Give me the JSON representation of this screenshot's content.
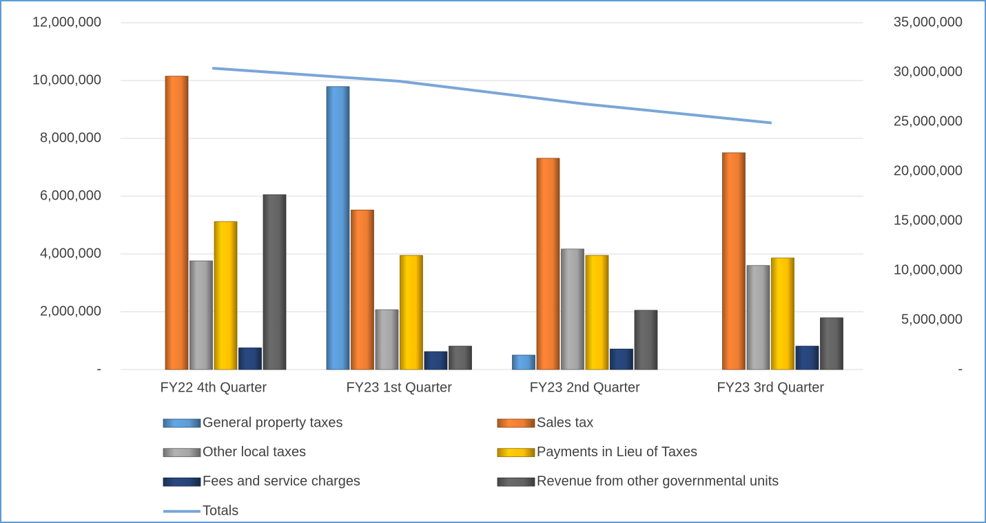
{
  "chart_data": {
    "type": "bar",
    "categories": [
      "FY22 4th Quarter",
      "FY23 1st Quarter",
      "FY23 2nd Quarter",
      "FY23 3rd Quarter"
    ],
    "series": [
      {
        "name": "General property taxes",
        "color": "#5b9bd5",
        "values": [
          0,
          9790000,
          500000,
          0
        ]
      },
      {
        "name": "Sales tax",
        "color": "#ed7d31",
        "values": [
          10150000,
          5520000,
          7310000,
          7500000
        ]
      },
      {
        "name": "Other local taxes",
        "color": "#a5a5a5",
        "values": [
          3760000,
          2070000,
          4170000,
          3600000
        ]
      },
      {
        "name": "Payments in Lieu of Taxes",
        "color": "#ffc000",
        "values": [
          5120000,
          3950000,
          3950000,
          3860000
        ]
      },
      {
        "name": "Fees and service charges",
        "color": "#264478",
        "values": [
          750000,
          620000,
          710000,
          810000
        ]
      },
      {
        "name": "Revenue from other governmental units",
        "color": "#636363",
        "values": [
          6050000,
          810000,
          2050000,
          1790000
        ]
      },
      {
        "name": "Totals",
        "color": "#7aa6d8",
        "type": "line",
        "axis": "y2",
        "values": [
          30400000,
          29100000,
          26800000,
          24900000
        ]
      }
    ],
    "ylim": [
      0,
      12000000
    ],
    "yticks": [
      {
        "value": 0,
        "label": "-"
      },
      {
        "value": 2000000,
        "label": "2,000,000"
      },
      {
        "value": 4000000,
        "label": "4,000,000"
      },
      {
        "value": 6000000,
        "label": "6,000,000"
      },
      {
        "value": 8000000,
        "label": "8,000,000"
      },
      {
        "value": 10000000,
        "label": "10,000,000"
      },
      {
        "value": 12000000,
        "label": "12,000,000"
      }
    ],
    "y2lim": [
      0,
      35000000
    ],
    "y2ticks": [
      {
        "value": 0,
        "label": "-"
      },
      {
        "value": 5000000,
        "label": "5,000,000"
      },
      {
        "value": 10000000,
        "label": "10,000,000"
      },
      {
        "value": 15000000,
        "label": "15,000,000"
      },
      {
        "value": 20000000,
        "label": "20,000,000"
      },
      {
        "value": 25000000,
        "label": "25,000,000"
      },
      {
        "value": 30000000,
        "label": "30,000,000"
      },
      {
        "value": 35000000,
        "label": "35,000,000"
      }
    ],
    "grid": true
  }
}
